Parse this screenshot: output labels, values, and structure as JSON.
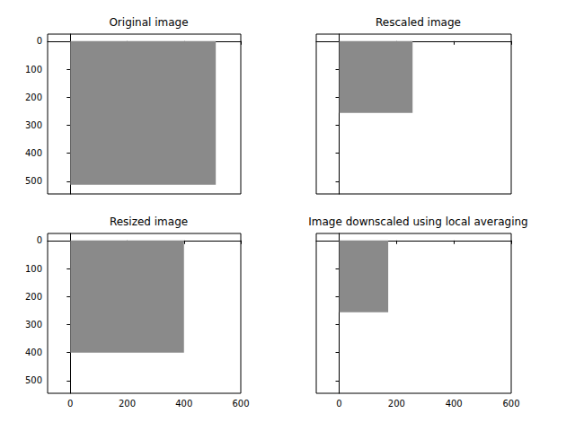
{
  "chart_data": [
    {
      "type": "image",
      "title": "Original image",
      "image_size": [
        512,
        512
      ],
      "color": "#8a8a8a",
      "xlim": [
        -80,
        600
      ],
      "xticks": [
        0,
        200,
        400,
        600
      ],
      "ylim": [
        -25,
        545
      ],
      "yticks": [
        0,
        100,
        200,
        300,
        400,
        500
      ],
      "tick_labels": "y"
    },
    {
      "type": "image",
      "title": "Rescaled image",
      "image_size": [
        256,
        256
      ],
      "color": "#8a8a8a",
      "xlim": [
        -80,
        600
      ],
      "xticks": [
        0,
        200,
        400,
        600
      ],
      "ylim": [
        -25,
        545
      ],
      "yticks": [
        0,
        100,
        200,
        300,
        400,
        500
      ],
      "tick_labels": false
    },
    {
      "type": "image",
      "title": "Resized image",
      "image_size": [
        400,
        400
      ],
      "color": "#8a8a8a",
      "xlim": [
        -80,
        600
      ],
      "xticks": [
        0,
        200,
        400,
        600
      ],
      "ylim": [
        -25,
        545
      ],
      "yticks": [
        0,
        100,
        200,
        300,
        400,
        500
      ],
      "tick_labels": true
    },
    {
      "type": "image",
      "title": "Image downscaled using local averaging",
      "image_size": [
        171,
        256
      ],
      "color": "#8a8a8a",
      "xlim": [
        -80,
        600
      ],
      "xticks": [
        0,
        200,
        400,
        600
      ],
      "ylim": [
        -25,
        545
      ],
      "yticks": [
        0,
        100,
        200,
        300,
        400,
        500
      ],
      "tick_labels": "x"
    }
  ]
}
